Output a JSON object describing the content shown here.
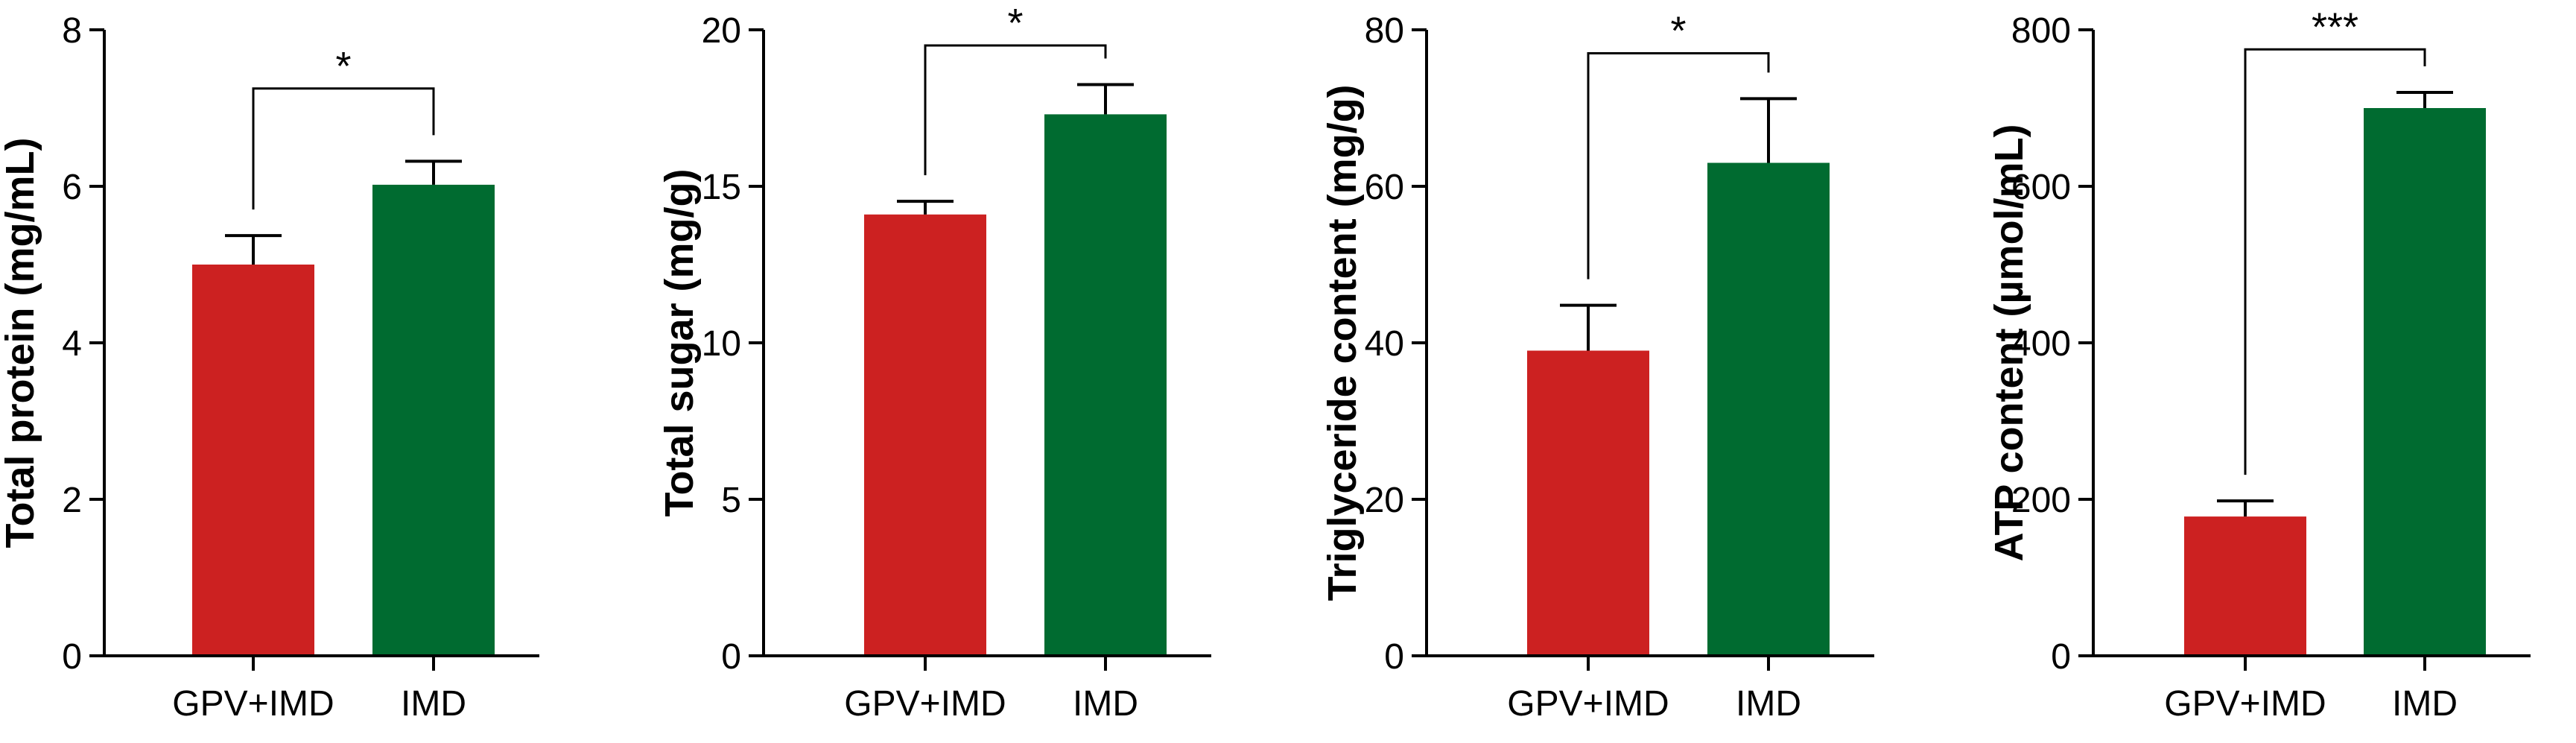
{
  "colors": {
    "group1": "#cc2121",
    "group2": "#006b30",
    "axis": "#000000"
  },
  "chart_data": [
    {
      "type": "bar",
      "categories": [
        "GPV+IMD",
        "IMD"
      ],
      "values": [
        5.0,
        6.02
      ],
      "errors": [
        0.37,
        0.3
      ],
      "ylabel": "Total protein (mg/mL)",
      "ylim": [
        0,
        8
      ],
      "yticks": [
        0,
        2,
        4,
        6,
        8
      ],
      "significance": "*",
      "bracket_top": 7.25
    },
    {
      "type": "bar",
      "categories": [
        "GPV+IMD",
        "IMD"
      ],
      "values": [
        14.1,
        17.3
      ],
      "errors": [
        0.42,
        0.95
      ],
      "ylabel": "Total sugar (mg/g)",
      "ylim": [
        0,
        20
      ],
      "yticks": [
        0,
        5,
        10,
        15,
        20
      ],
      "significance": "*",
      "bracket_top": 19.5
    },
    {
      "type": "bar",
      "categories": [
        "GPV+IMD",
        "IMD"
      ],
      "values": [
        39.0,
        63.0
      ],
      "errors": [
        5.8,
        8.2
      ],
      "ylabel": "Triglyceride content (mg/g)",
      "ylim": [
        0,
        80
      ],
      "yticks": [
        0,
        20,
        40,
        60,
        80
      ],
      "significance": "*",
      "bracket_top": 77.0
    },
    {
      "type": "bar",
      "categories": [
        "GPV+IMD",
        "IMD"
      ],
      "values": [
        178,
        700
      ],
      "errors": [
        20,
        20
      ],
      "ylabel": "ATP content (µmol/mL)",
      "ylim": [
        0,
        800
      ],
      "yticks": [
        0,
        200,
        400,
        600,
        800
      ],
      "significance": "***",
      "bracket_top": 775
    }
  ]
}
